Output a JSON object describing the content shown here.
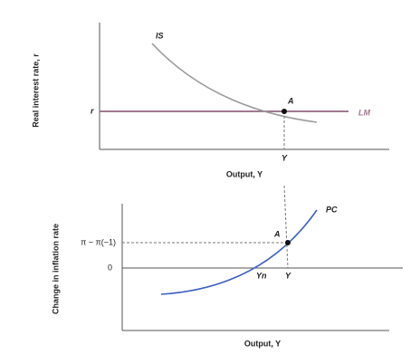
{
  "top_panel": {
    "curve_is_label": "IS",
    "point_label": "A",
    "curve_lm_label": "LM",
    "y_level_label": "r",
    "y_axis_label": "Real interest rate, r",
    "x_level_label": "Y",
    "x_axis_label": "Output, Y"
  },
  "bottom_panel": {
    "curve_pc_label": "PC",
    "point_label": "A",
    "y_level_label": "π − π(−1)",
    "zero_label": "0",
    "y_axis_label": "Change in inflation rate",
    "natural_output_label": "Yn",
    "x_level_label": "Y",
    "x_axis_label": "Output, Y"
  }
}
